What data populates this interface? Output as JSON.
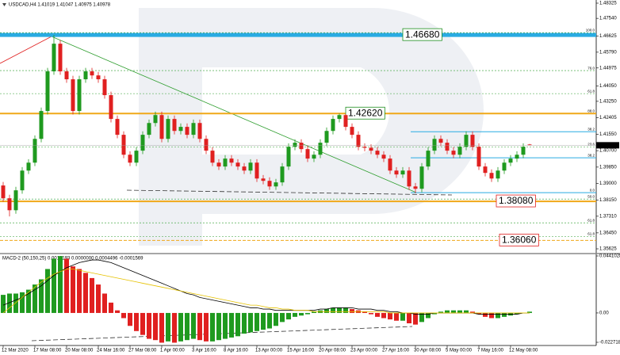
{
  "chart_data": [
    {
      "type": "candlestick",
      "title": "USDCAD,H4  1.41019 1.41047 1.40975 1.40978",
      "ylim": [
        1.35625,
        1.48325
      ],
      "yticks": [
        1.48325,
        {
          "value": 1.4754,
          "label": "1.47540"
        },
        1.46625,
        {
          "value": 1.4579,
          "label": "1.45790"
        },
        1.44975,
        {
          "value": 1.4405,
          "label": "1.44050"
        },
        {
          "value": 1.4325,
          "label": "1.43250"
        },
        1.42405,
        {
          "value": 1.4155,
          "label": "1.41550"
        },
        {
          "value": 1.407,
          "label": "1.40700"
        },
        {
          "value": 1.3985,
          "label": "1.39850"
        },
        {
          "value": 1.39,
          "label": "1.39000"
        },
        {
          "value": 1.3815,
          "label": "1.38150"
        },
        {
          "value": 1.3731,
          "label": "1.37310"
        },
        {
          "value": 1.3645,
          "label": "1.36450"
        },
        1.35625
      ],
      "xticks": [
        {
          "value": 0,
          "label": "12 Mar 2020"
        },
        {
          "value": 5,
          "label": "17 Mar 08:00"
        },
        {
          "value": 10,
          "label": "20 Mar 08:00"
        },
        {
          "value": 15,
          "label": "24 Mar 16:00"
        },
        {
          "value": 20,
          "label": "27 Mar 08:00"
        },
        {
          "value": 25,
          "label": "1 Apr 00:00"
        },
        {
          "value": 30,
          "label": "3 Apr 16:00"
        },
        {
          "value": 35,
          "label": "8 Apr 16:00"
        },
        {
          "value": 40,
          "label": "13 Apr 00:00"
        },
        {
          "value": 45,
          "label": "15 Apr 16:00"
        },
        {
          "value": 50,
          "label": "20 Apr 08:00"
        },
        {
          "value": 55,
          "label": "23 Apr 00:00"
        },
        {
          "value": 60,
          "label": "27 Apr 16:00"
        },
        {
          "value": 65,
          "label": "30 Apr 08:00"
        },
        {
          "value": 70,
          "label": "5 May 00:00"
        },
        {
          "value": 75,
          "label": "7 May 16:00"
        },
        {
          "value": 80,
          "label": "12 May 08:00"
        }
      ],
      "up_color": "#1f9a1f",
      "down_color": "#e02020",
      "open": [
        1.389,
        1.3824,
        1.3762,
        1.3865,
        1.3967,
        1.4008,
        1.4131,
        1.4275,
        1.448,
        1.4623,
        1.448,
        1.4439,
        1.4275,
        1.4439,
        1.448,
        1.4459,
        1.4439,
        1.4357,
        1.4234,
        1.4152,
        1.4049,
        1.4008,
        1.407,
        1.4152,
        1.4213,
        1.4254,
        1.4131,
        1.4234,
        1.4172,
        1.4193,
        1.4152,
        1.4213,
        1.4131,
        1.407,
        1.4008,
        1.3988,
        1.4029,
        1.4008,
        1.3988,
        1.3967,
        1.4008,
        1.3926,
        1.3914,
        1.3885,
        1.3906,
        1.3988,
        1.409,
        1.4111,
        1.4078,
        1.4029,
        1.4049,
        1.4111,
        1.4172,
        1.4234,
        1.4254,
        1.4193,
        1.4152,
        1.409,
        1.4085,
        1.407,
        1.4049,
        1.4029,
        1.3967,
        1.3947,
        1.3967,
        1.3885,
        1.3873,
        1.3988,
        1.407,
        1.4131,
        1.4111,
        1.407,
        1.4049,
        1.409,
        1.4152,
        1.409,
        1.3988,
        1.3955,
        1.3926,
        1.3967,
        1.4008,
        1.4029,
        1.4049,
        1.41019
      ],
      "high": [
        1.3908,
        1.3842,
        1.3883,
        1.3985,
        1.4026,
        1.4149,
        1.4293,
        1.4498,
        1.4668,
        1.4641,
        1.4498,
        1.4457,
        1.4457,
        1.4498,
        1.4498,
        1.4477,
        1.4457,
        1.4375,
        1.4252,
        1.417,
        1.4067,
        1.4088,
        1.417,
        1.4231,
        1.4272,
        1.4272,
        1.4252,
        1.4252,
        1.4211,
        1.4211,
        1.4231,
        1.4231,
        1.4149,
        1.4088,
        1.4026,
        1.4047,
        1.4047,
        1.4026,
        1.4006,
        1.4026,
        1.4026,
        1.3944,
        1.3932,
        1.3924,
        1.4006,
        1.4108,
        1.4129,
        1.4129,
        1.4096,
        1.4067,
        1.4129,
        1.419,
        1.4252,
        1.4262,
        1.426,
        1.4211,
        1.417,
        1.4108,
        1.4103,
        1.4088,
        1.4067,
        1.4047,
        1.3985,
        1.3985,
        1.3985,
        1.3903,
        1.4006,
        1.4088,
        1.4149,
        1.4149,
        1.4129,
        1.4088,
        1.4108,
        1.417,
        1.417,
        1.4108,
        1.4006,
        1.3973,
        1.3985,
        1.4026,
        1.4047,
        1.4067,
        1.4108,
        1.41047
      ],
      "low": [
        1.3806,
        1.373,
        1.3744,
        1.3847,
        1.3949,
        1.399,
        1.4113,
        1.4257,
        1.4462,
        1.4462,
        1.4421,
        1.4257,
        1.4257,
        1.4421,
        1.4441,
        1.4421,
        1.4339,
        1.4216,
        1.4134,
        1.4031,
        1.399,
        1.399,
        1.4052,
        1.4134,
        1.4195,
        1.4113,
        1.4113,
        1.4154,
        1.4154,
        1.4134,
        1.4134,
        1.4113,
        1.4052,
        1.399,
        1.397,
        1.397,
        1.399,
        1.397,
        1.3949,
        1.3949,
        1.3908,
        1.3896,
        1.3867,
        1.3867,
        1.3888,
        1.397,
        1.4072,
        1.406,
        1.4011,
        1.4011,
        1.4031,
        1.4093,
        1.4154,
        1.4216,
        1.4175,
        1.4134,
        1.4072,
        1.4067,
        1.4052,
        1.4031,
        1.4011,
        1.3949,
        1.3929,
        1.3929,
        1.3867,
        1.385,
        1.3855,
        1.397,
        1.4052,
        1.4093,
        1.4052,
        1.4031,
        1.4031,
        1.4072,
        1.4072,
        1.397,
        1.3937,
        1.3908,
        1.3908,
        1.3949,
        1.399,
        1.4011,
        1.4031,
        1.40975
      ],
      "close": [
        1.3824,
        1.3762,
        1.3865,
        1.3967,
        1.4008,
        1.4131,
        1.4275,
        1.448,
        1.4623,
        1.448,
        1.4439,
        1.4275,
        1.4439,
        1.448,
        1.4459,
        1.4439,
        1.4357,
        1.4234,
        1.4152,
        1.4049,
        1.4008,
        1.407,
        1.4152,
        1.4213,
        1.4254,
        1.4131,
        1.4234,
        1.4172,
        1.4193,
        1.4152,
        1.4213,
        1.4131,
        1.407,
        1.4008,
        1.3988,
        1.4029,
        1.4008,
        1.3988,
        1.3967,
        1.4008,
        1.3926,
        1.3914,
        1.3885,
        1.3906,
        1.3988,
        1.409,
        1.4111,
        1.4078,
        1.4029,
        1.4049,
        1.4111,
        1.4172,
        1.4234,
        1.4254,
        1.4193,
        1.4152,
        1.409,
        1.4085,
        1.407,
        1.4049,
        1.4029,
        1.3967,
        1.3947,
        1.3967,
        1.3885,
        1.3873,
        1.3988,
        1.407,
        1.4131,
        1.4111,
        1.407,
        1.4049,
        1.409,
        1.4152,
        1.409,
        1.3988,
        1.3955,
        1.3926,
        1.3967,
        1.4008,
        1.4029,
        1.4049,
        1.409,
        1.40978
      ],
      "current_price": 1.40978,
      "levels": [
        {
          "value": 1.4668,
          "label": "1.46680",
          "color": "#29abe2",
          "width": 5,
          "label_color": "#1e8f1e"
        },
        {
          "value": 1.4262,
          "label": "1.42620",
          "color": "#f0a818",
          "width": 2,
          "label_color": "#1e8f1e"
        },
        {
          "value": 1.3808,
          "label": "1.38080",
          "color": "#f0a818",
          "width": 2,
          "label_color": "#e02020"
        },
        {
          "value": 1.3606,
          "label": "1.36060",
          "color": "#f0a818",
          "width": 1,
          "label_color": "#e02020"
        }
      ],
      "fib_levels": [
        {
          "value": 1.468,
          "label": "100.0",
          "color": "#2e9e2e"
        },
        {
          "value": 1.4484,
          "label": "76.0",
          "color": "#2e9e2e"
        },
        {
          "value": 1.4365,
          "label": "61.8",
          "color": "#2e9e2e"
        },
        {
          "value": 1.4262,
          "label": "88.0",
          "color": "#2e9e2e"
        },
        {
          "value": 1.4168,
          "label": "38.2",
          "color": "#29abe2"
        },
        {
          "value": 1.409,
          "label": "23.6",
          "color": "#2e9e2e"
        },
        {
          "value": 1.4033,
          "label": "38.2",
          "color": "#29abe2"
        },
        {
          "value": 1.3853,
          "label": "0.0",
          "color": "#29abe2"
        },
        {
          "value": 1.382,
          "label": "50.0",
          "color": "#2e9e2e"
        },
        {
          "value": 1.3697,
          "label": "61.8",
          "color": "#2e9e2e"
        },
        {
          "value": 1.3627,
          "label": "61.8",
          "color": "#2e9e2e"
        }
      ]
    },
    {
      "type": "macd",
      "title": "MACD-2 (50,150,25) 0.0018193 0.0000000 0.0004496 -0.0001569",
      "ylim": [
        -0.0227181,
        0.0441028
      ],
      "yticks": [
        0.0441028,
        {
          "value": 0,
          "label": "0.00"
        },
        -0.0227181
      ],
      "histogram": {
        "up_color": "#1f9a1f",
        "down_color": "#e02020",
        "values": [
          0.014,
          0.015,
          0.015,
          0.016,
          0.018,
          0.022,
          0.026,
          0.034,
          0.042,
          0.044,
          0.042,
          0.036,
          0.034,
          0.031,
          0.027,
          0.022,
          0.015,
          0.008,
          0.002,
          -0.004,
          -0.01,
          -0.014,
          -0.017,
          -0.02,
          -0.021,
          -0.023,
          -0.022,
          -0.023,
          -0.022,
          -0.021,
          -0.02,
          -0.021,
          -0.022,
          -0.022,
          -0.021,
          -0.02,
          -0.019,
          -0.018,
          -0.016,
          -0.015,
          -0.014,
          -0.013,
          -0.012,
          -0.01,
          -0.007,
          -0.005,
          -0.003,
          -0.002,
          -0.001,
          0.001,
          0.002,
          0.003,
          0.004,
          0.004,
          0.004,
          0.003,
          0.002,
          0.001,
          -0.001,
          -0.003,
          -0.004,
          -0.005,
          -0.006,
          -0.006,
          -0.008,
          -0.009,
          -0.007,
          -0.004,
          -0.001,
          0.001,
          0.002,
          0.002,
          0.002,
          0.002,
          0.001,
          -0.001,
          -0.003,
          -0.004,
          -0.004,
          -0.003,
          -0.002,
          -0.001,
          0.0,
          0.001
        ]
      },
      "lines": [
        {
          "color": "#000000",
          "values": [
            0.006,
            0.008,
            0.01,
            0.012,
            0.015,
            0.018,
            0.021,
            0.025,
            0.029,
            0.032,
            0.035,
            0.037,
            0.039,
            0.04,
            0.041,
            0.041,
            0.04,
            0.039,
            0.037,
            0.035,
            0.033,
            0.031,
            0.029,
            0.027,
            0.025,
            0.023,
            0.021,
            0.019,
            0.017,
            0.015,
            0.014,
            0.012,
            0.011,
            0.01,
            0.009,
            0.008,
            0.007,
            0.006,
            0.005,
            0.004,
            0.004,
            0.003,
            0.003,
            0.002,
            0.002,
            0.002,
            0.002,
            0.002,
            0.002,
            0.002,
            0.003,
            0.003,
            0.004,
            0.004,
            0.004,
            0.004,
            0.003,
            0.003,
            0.003,
            0.002,
            0.002,
            0.001,
            0.001,
            0.0,
            0.0,
            -0.001,
            -0.001,
            -0.001,
            0.0,
            0.0,
            0.0,
            0.0,
            0.0,
            0.0,
            0.0,
            -0.001,
            -0.001,
            -0.001,
            -0.001,
            -0.001,
            -0.001,
            -0.001,
            0.0,
            0.0
          ]
        },
        {
          "color": "#e6c200",
          "values": [
            0.0,
            0.004,
            0.008,
            0.012,
            0.016,
            0.02,
            0.024,
            0.027,
            0.03,
            0.032,
            0.034,
            0.034,
            0.033,
            0.032,
            0.031,
            0.03,
            0.029,
            0.028,
            0.027,
            0.026,
            0.025,
            0.024,
            0.023,
            0.022,
            0.021,
            0.02,
            0.019,
            0.018,
            0.017,
            0.016,
            0.015,
            0.014,
            0.013,
            0.012,
            0.011,
            0.01,
            0.009,
            0.008,
            0.007,
            0.006,
            0.006,
            0.005,
            0.004,
            0.004,
            0.003,
            0.003,
            0.002,
            0.002,
            0.002,
            0.001,
            0.001,
            0.001,
            0.001,
            0.001,
            0.001,
            0.001,
            0.001,
            0.001,
            0.001,
            0.001,
            0.001,
            0.0,
            0.0,
            0.0,
            0.0,
            0.0,
            0.0,
            0.0,
            0.0,
            0.0,
            0.0,
            0.0,
            0.0,
            0.0,
            0.0,
            0.0,
            0.0,
            0.0,
            0.0,
            0.0,
            0.0,
            0.0,
            0.0,
            0.0
          ]
        }
      ]
    }
  ]
}
